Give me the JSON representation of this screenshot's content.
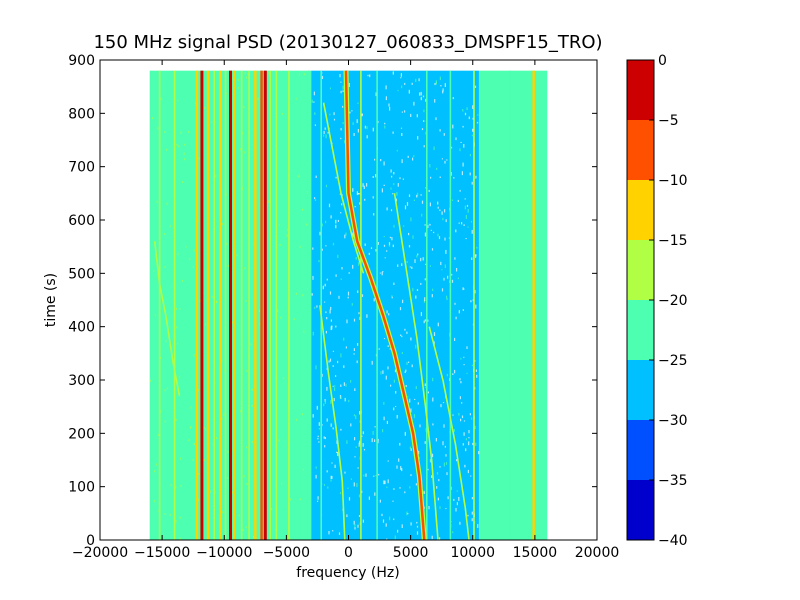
{
  "chart_data": {
    "type": "heatmap",
    "title": "150 MHz signal PSD (20130127_060833_DMSPF15_TRO)",
    "xlabel": "frequency (Hz)",
    "ylabel": "time (s)",
    "xlim": [
      -20000,
      20000
    ],
    "ylim": [
      0,
      900
    ],
    "data_extent": {
      "x": [
        -16000,
        16000
      ],
      "y": [
        0,
        880
      ]
    },
    "grid": false,
    "x_ticks": [
      {
        "value": -20000,
        "label": "−20000"
      },
      {
        "value": -15000,
        "label": "−15000"
      },
      {
        "value": -10000,
        "label": "−10000"
      },
      {
        "value": -5000,
        "label": "−5000"
      },
      {
        "value": 0,
        "label": "0"
      },
      {
        "value": 5000,
        "label": "5000"
      },
      {
        "value": 10000,
        "label": "10000"
      },
      {
        "value": 15000,
        "label": "15000"
      },
      {
        "value": 20000,
        "label": "20000"
      }
    ],
    "y_ticks": [
      {
        "value": 0,
        "label": "0"
      },
      {
        "value": 100,
        "label": "100"
      },
      {
        "value": 200,
        "label": "200"
      },
      {
        "value": 300,
        "label": "300"
      },
      {
        "value": 400,
        "label": "400"
      },
      {
        "value": 500,
        "label": "500"
      },
      {
        "value": 600,
        "label": "600"
      },
      {
        "value": 700,
        "label": "700"
      },
      {
        "value": 800,
        "label": "800"
      },
      {
        "value": 900,
        "label": "900"
      }
    ],
    "colorbar": {
      "range": [
        -40,
        0
      ],
      "ticks": [
        {
          "value": 0,
          "label": "0"
        },
        {
          "value": -5,
          "label": "−5"
        },
        {
          "value": -10,
          "label": "−10"
        },
        {
          "value": -15,
          "label": "−15"
        },
        {
          "value": -20,
          "label": "−20"
        },
        {
          "value": -25,
          "label": "−25"
        },
        {
          "value": -30,
          "label": "−30"
        },
        {
          "value": -35,
          "label": "−35"
        },
        {
          "value": -40,
          "label": "−40"
        }
      ],
      "levels": [
        {
          "from": -40,
          "to": -35,
          "color": "#0000cc"
        },
        {
          "from": -35,
          "to": -30,
          "color": "#0050ff"
        },
        {
          "from": -30,
          "to": -25,
          "color": "#00c0ff"
        },
        {
          "from": -25,
          "to": -20,
          "color": "#4dffb0"
        },
        {
          "from": -20,
          "to": -15,
          "color": "#b0ff45"
        },
        {
          "from": -15,
          "to": -10,
          "color": "#ffd200"
        },
        {
          "from": -10,
          "to": -5,
          "color": "#ff5000"
        },
        {
          "from": -5,
          "to": 0,
          "color": "#cc0000"
        }
      ]
    },
    "regions": [
      {
        "x": [
          -16000,
          -3000
        ],
        "level": -22.5
      },
      {
        "x": [
          -3000,
          10500
        ],
        "level": -27.5
      },
      {
        "x": [
          10500,
          16000
        ],
        "level": -22.5
      }
    ],
    "lines": [
      {
        "x": -15200,
        "level": -17.5
      },
      {
        "x": -14000,
        "level": -17.5
      },
      {
        "x": -12200,
        "level": -12.5
      },
      {
        "x": -11800,
        "level": -2.5
      },
      {
        "x": -11300,
        "level": -12.5
      },
      {
        "x": -10800,
        "level": -17.5
      },
      {
        "x": -10300,
        "level": -12.5
      },
      {
        "x": -9900,
        "level": -17.5
      },
      {
        "x": -9500,
        "level": -2.5
      },
      {
        "x": -9200,
        "level": -12.5
      },
      {
        "x": -8600,
        "level": -17.5
      },
      {
        "x": -8000,
        "level": -17.5
      },
      {
        "x": -7500,
        "level": -12.5
      },
      {
        "x": -7000,
        "level": -7.5
      },
      {
        "x": -6700,
        "level": -2.5
      },
      {
        "x": -6300,
        "level": -17.5
      },
      {
        "x": -5800,
        "level": -17.5
      },
      {
        "x": -4800,
        "level": -17.5
      },
      {
        "x": -3200,
        "level": -22.5
      },
      {
        "x": -2200,
        "level": -22.5
      },
      {
        "x": 1000,
        "level": -17.5
      },
      {
        "x": 2300,
        "level": -22.5
      },
      {
        "x": 6300,
        "level": -22.5
      },
      {
        "x": 8200,
        "level": -22.5
      },
      {
        "x": 10100,
        "level": -17.5
      },
      {
        "x": 13000,
        "level": -22.5
      },
      {
        "x": 14900,
        "level": -12.5
      }
    ],
    "traces": [
      {
        "level": -7.5,
        "points": [
          [
            -200,
            880
          ],
          [
            0,
            650
          ],
          [
            700,
            560
          ],
          [
            1800,
            490
          ],
          [
            2800,
            420
          ],
          [
            3700,
            350
          ],
          [
            4400,
            280
          ],
          [
            5200,
            200
          ],
          [
            5700,
            120
          ],
          [
            6100,
            0
          ]
        ]
      },
      {
        "level": -17.5,
        "points": [
          [
            -2000,
            820
          ],
          [
            -600,
            650
          ],
          [
            400,
            560
          ],
          [
            1200,
            500
          ]
        ]
      },
      {
        "level": -20,
        "points": [
          [
            3700,
            650
          ],
          [
            4700,
            500
          ],
          [
            5500,
            380
          ],
          [
            6200,
            250
          ],
          [
            6700,
            150
          ],
          [
            7200,
            0
          ]
        ]
      },
      {
        "level": -20,
        "points": [
          [
            6500,
            400
          ],
          [
            7600,
            300
          ],
          [
            8600,
            180
          ],
          [
            9400,
            60
          ],
          [
            9700,
            0
          ]
        ]
      },
      {
        "level": -20,
        "points": [
          [
            -15600,
            560
          ],
          [
            -15200,
            480
          ],
          [
            -14700,
            420
          ],
          [
            -14100,
            330
          ],
          [
            -13600,
            270
          ]
        ]
      },
      {
        "level": -20,
        "points": [
          [
            -2300,
            440
          ],
          [
            -1600,
            310
          ],
          [
            -1000,
            210
          ],
          [
            -500,
            110
          ],
          [
            -300,
            0
          ]
        ]
      }
    ],
    "random_speckle": true
  }
}
